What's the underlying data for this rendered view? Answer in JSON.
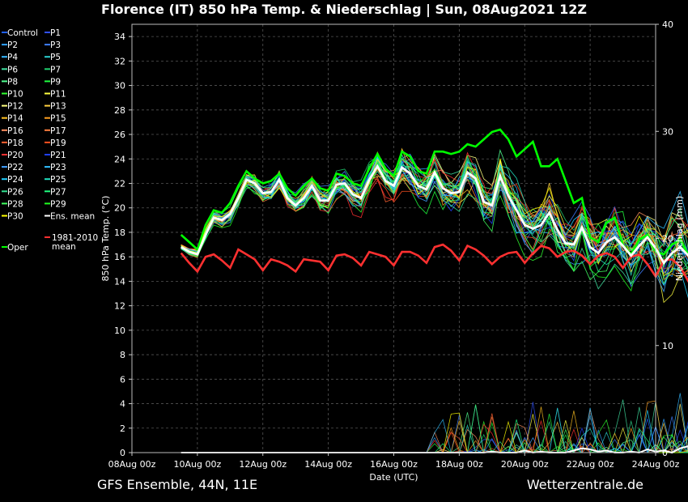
{
  "title": "Florence  (IT)  850 hPa Temp. & Niederschlag | Sun, 08Aug2021 12Z",
  "footer": {
    "model": "GFS Ensemble, 44N, 11E",
    "site": "Wetterzentrale.de"
  },
  "chart_data": {
    "type": "line",
    "xlabel": "Date (UTC)",
    "ylabel_left": "850 hPa Temp. (°C)",
    "ylabel_right": "Niederschlag (mm)",
    "x_ticks": [
      "08Aug 00z",
      "10Aug 00z",
      "12Aug 00z",
      "14Aug 00z",
      "16Aug 00z",
      "18Aug 00z",
      "20Aug 00z",
      "22Aug 00z",
      "24Aug 00z"
    ],
    "xlim_hours": [
      0,
      384
    ],
    "ylim_left": [
      0,
      35
    ],
    "ylim_right": [
      0,
      40
    ],
    "y_ticks_left": [
      0,
      2,
      4,
      6,
      8,
      10,
      12,
      14,
      16,
      18,
      20,
      22,
      24,
      26,
      28,
      30,
      32,
      34
    ],
    "y_ticks_right": [
      0,
      10,
      20,
      30,
      40
    ],
    "grid": true,
    "legend_placement": "left-outside",
    "time_step_hours": 6,
    "start_hour": 36,
    "ens_mean_temp": [
      16.8,
      16.4,
      16.2,
      17.8,
      19.2,
      19.0,
      19.5,
      20.8,
      22.3,
      22.0,
      21.2,
      21.3,
      22.3,
      20.8,
      20.2,
      20.8,
      21.8,
      20.6,
      20.6,
      21.9,
      22.0,
      21.1,
      20.8,
      22.3,
      23.4,
      22.2,
      21.8,
      23.3,
      22.8,
      21.8,
      21.5,
      22.9,
      21.6,
      21.2,
      21.3,
      22.9,
      22.4,
      20.5,
      20.2,
      22.6,
      21.0,
      19.8,
      18.6,
      18.3,
      18.6,
      19.6,
      18.2,
      17.1,
      17.0,
      18.4,
      16.8,
      16.3,
      17.2,
      17.6,
      16.9,
      16.1,
      16.9,
      17.6,
      16.7,
      15.5,
      16.3,
      16.8,
      16.1,
      15.3,
      16.1,
      17.3,
      16.2,
      15.5,
      16.6
    ],
    "oper_temp": [
      17.8,
      17.2,
      16.6,
      18.6,
      19.8,
      19.6,
      20.4,
      21.8,
      23.0,
      22.4,
      22.0,
      22.2,
      22.8,
      21.6,
      21.0,
      21.8,
      22.4,
      21.6,
      21.4,
      22.8,
      22.6,
      22.0,
      21.8,
      23.2,
      24.4,
      23.2,
      22.6,
      24.6,
      24.2,
      23.0,
      22.8,
      24.6,
      24.6,
      24.4,
      24.6,
      25.2,
      25.0,
      25.6,
      26.2,
      26.4,
      25.6,
      24.2,
      24.8,
      25.4,
      23.4,
      23.4,
      24.0,
      22.2,
      20.4,
      20.8,
      17.6,
      17.2,
      18.8,
      19.2,
      17.0,
      16.2,
      17.4,
      17.8,
      16.4,
      16.2,
      17.0,
      17.4,
      16.2,
      15.6,
      16.6,
      17.4,
      16.4,
      15.6,
      17.6
    ],
    "clim_mean_temp": [
      16.3,
      15.5,
      14.8,
      16.0,
      16.2,
      15.7,
      15.1,
      16.6,
      16.2,
      15.8,
      14.9,
      15.8,
      15.6,
      15.3,
      14.8,
      15.8,
      15.7,
      15.6,
      14.9,
      16.1,
      16.2,
      15.9,
      15.3,
      16.4,
      16.2,
      16.0,
      15.3,
      16.4,
      16.4,
      16.1,
      15.5,
      16.8,
      17.0,
      16.5,
      15.7,
      16.9,
      16.6,
      16.1,
      15.4,
      16.0,
      16.3,
      16.4,
      15.5,
      16.3,
      16.9,
      16.7,
      16.0,
      16.4,
      16.5,
      16.1,
      15.4,
      16.1,
      16.3,
      16.0,
      15.1,
      16.0,
      16.2,
      15.4,
      14.4,
      15.7,
      15.8,
      15.2,
      14.0,
      15.4,
      15.6,
      14.9,
      13.7,
      15.4,
      15.9
    ],
    "ens_mean_precip": [
      0,
      0,
      0,
      0,
      0,
      0,
      0,
      0,
      0,
      0,
      0,
      0,
      0,
      0,
      0,
      0,
      0,
      0,
      0,
      0,
      0,
      0,
      0,
      0,
      0,
      0,
      0,
      0,
      0,
      0,
      0,
      0,
      0,
      0,
      0,
      0,
      0,
      0,
      0.1,
      0,
      0,
      0,
      0.2,
      0,
      0.1,
      0,
      0,
      0,
      0.2,
      0.4,
      0.3,
      0.1,
      0.2,
      0,
      0,
      0.1,
      0,
      0.3,
      0.1,
      0.2,
      0,
      0.4,
      0.6,
      0.9,
      0.3,
      0,
      0.2,
      0.5,
      0
    ],
    "legend": [
      [
        "Control",
        "#2060ff"
      ],
      [
        "P1",
        "#3050ff"
      ],
      [
        "P2",
        "#2fa0ff"
      ],
      [
        "P3",
        "#3f7fff"
      ],
      [
        "P4",
        "#35b8ff"
      ],
      [
        "P5",
        "#2ad0d0"
      ],
      [
        "P6",
        "#40e0a0"
      ],
      [
        "P7",
        "#20d070"
      ],
      [
        "P8",
        "#50ff90"
      ],
      [
        "P9",
        "#20ff40"
      ],
      [
        "P10",
        "#30ff30"
      ],
      [
        "P11",
        "#ffff40"
      ],
      [
        "P12",
        "#ffff80"
      ],
      [
        "P13",
        "#ffd040"
      ],
      [
        "P14",
        "#ffc020"
      ],
      [
        "P15",
        "#ffa020"
      ],
      [
        "P16",
        "#ff9060"
      ],
      [
        "P17",
        "#ff8040"
      ],
      [
        "P18",
        "#ff6030"
      ],
      [
        "P19",
        "#ff5020"
      ],
      [
        "P20",
        "#ff3030"
      ],
      [
        "P21",
        "#2040ff"
      ],
      [
        "P22",
        "#40a0ff"
      ],
      [
        "P23",
        "#30c0ff"
      ],
      [
        "P24",
        "#20d0ff"
      ],
      [
        "P25",
        "#20e0c0"
      ],
      [
        "P26",
        "#30e090"
      ],
      [
        "P27",
        "#20ff80"
      ],
      [
        "P28",
        "#40ff60"
      ],
      [
        "P29",
        "#20ff20"
      ],
      [
        "P30",
        "#ffff00"
      ],
      [
        "Ens. mean",
        "#ffffff"
      ]
    ],
    "oper_label": "Oper",
    "oper_color": "#00ff00",
    "clim_label": [
      "1981-2010",
      "mean"
    ],
    "clim_color": "#ff3030"
  }
}
